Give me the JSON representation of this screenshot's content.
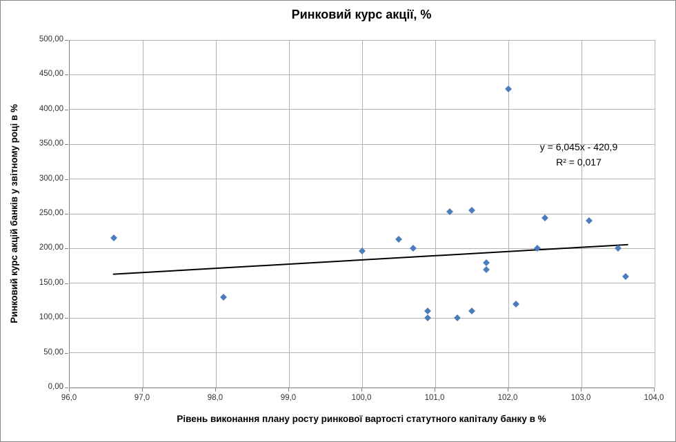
{
  "chart_data": {
    "type": "scatter",
    "title": "Ринковий курс акції, %",
    "xlabel": "Рівень виконання плану росту ринкової вартості статутного капіталу банку в %",
    "ylabel": "Ринковий курс акцій банків у звітному році в %",
    "xlim": [
      96,
      104
    ],
    "ylim": [
      0,
      500
    ],
    "grid": true,
    "legend": "none",
    "xticks": [
      {
        "value": 96,
        "label": "96,0"
      },
      {
        "value": 97,
        "label": "97,0"
      },
      {
        "value": 98,
        "label": "98,0"
      },
      {
        "value": 99,
        "label": "99,0"
      },
      {
        "value": 100,
        "label": "100,0"
      },
      {
        "value": 101,
        "label": "101,0"
      },
      {
        "value": 102,
        "label": "102,0"
      },
      {
        "value": 103,
        "label": "103,0"
      },
      {
        "value": 104,
        "label": "104,0"
      }
    ],
    "yticks": [
      {
        "value": 0,
        "label": "0,00"
      },
      {
        "value": 50,
        "label": "50,00"
      },
      {
        "value": 100,
        "label": "100,00"
      },
      {
        "value": 150,
        "label": "150,00"
      },
      {
        "value": 200,
        "label": "200,00"
      },
      {
        "value": 250,
        "label": "250,00"
      },
      {
        "value": 300,
        "label": "300,00"
      },
      {
        "value": 350,
        "label": "350,00"
      },
      {
        "value": 400,
        "label": "400,00"
      },
      {
        "value": 450,
        "label": "450,00"
      },
      {
        "value": 500,
        "label": "500,00"
      }
    ],
    "points": [
      [
        96.6,
        215
      ],
      [
        98.1,
        130
      ],
      [
        100.0,
        196
      ],
      [
        100.5,
        213
      ],
      [
        100.7,
        200
      ],
      [
        100.9,
        110
      ],
      [
        100.9,
        100
      ],
      [
        101.2,
        253
      ],
      [
        101.3,
        100
      ],
      [
        101.5,
        255
      ],
      [
        101.5,
        110
      ],
      [
        101.7,
        180
      ],
      [
        101.7,
        170
      ],
      [
        102.0,
        430
      ],
      [
        102.1,
        120
      ],
      [
        102.4,
        200
      ],
      [
        102.5,
        244
      ],
      [
        103.1,
        240
      ],
      [
        103.5,
        200
      ],
      [
        103.6,
        160
      ]
    ],
    "trendline": {
      "slope": 6.045,
      "intercept": -420.9,
      "x_start": 96.6,
      "x_end": 103.63,
      "equation": "y = 6,045x - 420,9",
      "r_squared": "R² = 0,017"
    },
    "colors": {
      "marker": "#4a7ebb",
      "trendline": "#000000",
      "gridline": "#b3b3b3",
      "axis": "#7f7f7f",
      "tick_text": "#333333",
      "title_text": "#000000"
    }
  }
}
